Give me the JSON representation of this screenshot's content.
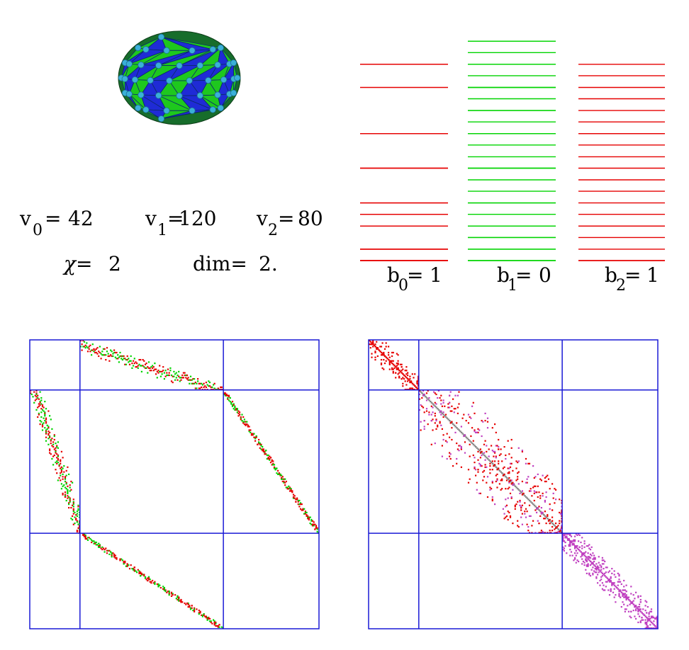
{
  "colors": {
    "red": "#e60000",
    "green": "#00d400",
    "blue": "#1a1ad6",
    "magenta": "#c040c0",
    "gray": "#888888",
    "mesh_blue": "#1f2bd6",
    "mesh_green": "#1ec81e",
    "mesh_dark": "#176d2b",
    "vertex": "#3ab0d8"
  },
  "stats": {
    "v0": {
      "base": "v",
      "sub": "0",
      "value": "42"
    },
    "v1": {
      "base": "v",
      "sub": "1",
      "value": "120"
    },
    "v2": {
      "base": "v",
      "sub": "2",
      "value": "80"
    },
    "chi": {
      "label": "χ=",
      "value": "2"
    },
    "dim": {
      "label": "dim=",
      "value": "2."
    }
  },
  "betti": [
    {
      "base": "b",
      "sub": "0",
      "value": "1",
      "color": "red"
    },
    {
      "base": "b",
      "sub": "1",
      "value": "0",
      "color": "green"
    },
    {
      "base": "b",
      "sub": "2",
      "value": "1",
      "color": "red"
    }
  ],
  "spectra": [
    {
      "color": "red",
      "levels": [
        0,
        0,
        0,
        0.34,
        0.34,
        0.34,
        1.03,
        1.03,
        1.38,
        1.38,
        1.72,
        1.72,
        2.76,
        2.76,
        3.79,
        3.79,
        5.17,
        5.86,
        5.86,
        5.86
      ]
    },
    {
      "color": "green",
      "levels": [
        0,
        0,
        0.34,
        0.34,
        0.69,
        0.69,
        1.03,
        1.03,
        1.38,
        1.72,
        1.72,
        2.07,
        2.41,
        2.76,
        2.76,
        3.1,
        3.45,
        3.79,
        3.79,
        4.14,
        4.48,
        4.48,
        4.83,
        5.17,
        5.17,
        5.52,
        5.86,
        5.86,
        6.21,
        6.55,
        6.55
      ]
    },
    {
      "color": "red",
      "levels": [
        0,
        0,
        0.34,
        0.69,
        1.03,
        1.03,
        1.38,
        1.72,
        2.07,
        2.41,
        2.76,
        3.1,
        3.45,
        3.79,
        3.79,
        4.14,
        4.48,
        4.83,
        5.17,
        5.52,
        5.86
      ]
    }
  ],
  "matrices": [
    {
      "partition": [
        42,
        120,
        80
      ],
      "size": 242,
      "type": "dirac"
    },
    {
      "partition": [
        42,
        120,
        80
      ],
      "size": 242,
      "type": "laplacian"
    }
  ]
}
